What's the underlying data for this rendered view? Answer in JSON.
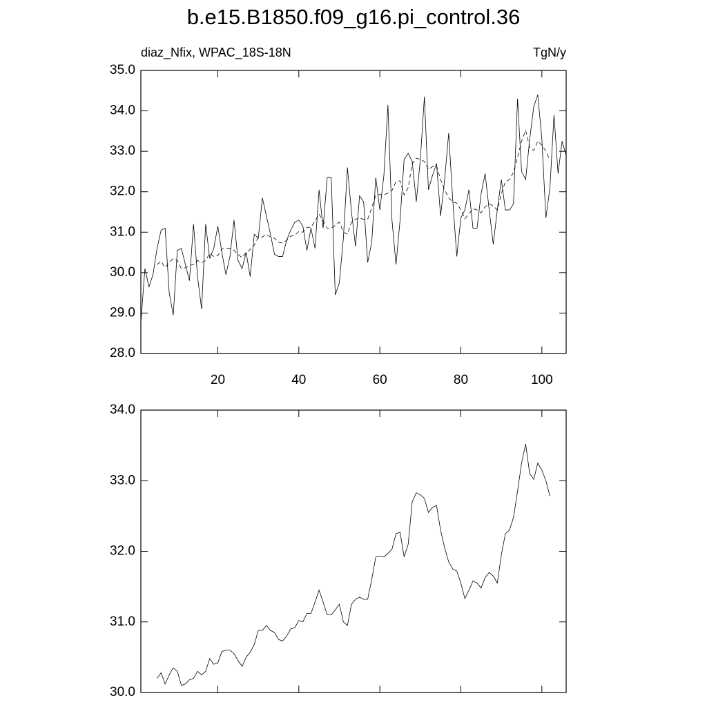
{
  "chart_data": [
    {
      "type": "line",
      "title": "b.e15.B1850.f09_g16.pi_control.36",
      "subtitle_left": "diaz_Nfix, WPAC_18S-18N",
      "subtitle_right": "TgN/y",
      "x": [
        1,
        2,
        3,
        4,
        5,
        6,
        7,
        8,
        9,
        10,
        11,
        12,
        13,
        14,
        15,
        16,
        17,
        18,
        19,
        20,
        21,
        22,
        23,
        24,
        25,
        26,
        27,
        28,
        29,
        30,
        31,
        32,
        33,
        34,
        35,
        36,
        37,
        38,
        39,
        40,
        41,
        42,
        43,
        44,
        45,
        46,
        47,
        48,
        49,
        50,
        51,
        52,
        53,
        54,
        55,
        56,
        57,
        58,
        59,
        60,
        61,
        62,
        63,
        64,
        65,
        66,
        67,
        68,
        69,
        70,
        71,
        72,
        73,
        74,
        75,
        76,
        77,
        78,
        79,
        80,
        81,
        82,
        83,
        84,
        85,
        86,
        87,
        88,
        89,
        90,
        91,
        92,
        93,
        94,
        95,
        96,
        97,
        98,
        99,
        100,
        101,
        102,
        103,
        104,
        105,
        106
      ],
      "series": [
        {
          "color": "#000000",
          "dash": false,
          "values": [
            28.75,
            30.1,
            29.65,
            29.95,
            30.6,
            31.05,
            31.1,
            29.5,
            28.95,
            30.55,
            30.6,
            30.2,
            29.8,
            31.2,
            29.9,
            29.1,
            31.2,
            30.35,
            30.6,
            31.15,
            30.5,
            29.95,
            30.4,
            31.3,
            30.3,
            30.1,
            30.5,
            29.9,
            30.95,
            30.85,
            31.85,
            31.4,
            30.95,
            30.45,
            30.4,
            30.4,
            30.8,
            31.05,
            31.25,
            31.3,
            31.15,
            30.55,
            31.1,
            30.6,
            32.05,
            31.1,
            32.35,
            32.35,
            29.45,
            29.75,
            30.85,
            32.6,
            31.5,
            30.65,
            31.9,
            31.75,
            30.25,
            30.75,
            32.35,
            31.55,
            32.4,
            34.15,
            31.3,
            30.2,
            31.3,
            32.8,
            32.95,
            32.75,
            31.75,
            32.8,
            34.35,
            32.05,
            32.4,
            32.7,
            31.4,
            32.3,
            33.45,
            31.8,
            30.4,
            31.35,
            31.55,
            32.05,
            31.1,
            31.1,
            31.95,
            32.45,
            31.55,
            30.7,
            31.55,
            32.3,
            31.55,
            31.55,
            31.7,
            34.3,
            32.5,
            32.3,
            33.3,
            34.1,
            34.4,
            33.3,
            31.35,
            32.1,
            33.9,
            32.45,
            33.25,
            32.9
          ]
        },
        {
          "color": "#000000",
          "dash": true,
          "values": [
            null,
            null,
            null,
            null,
            30.2,
            30.28,
            30.12,
            30.25,
            30.35,
            30.3,
            30.1,
            30.12,
            30.18,
            30.2,
            30.3,
            30.25,
            30.3,
            30.48,
            30.4,
            30.42,
            30.58,
            30.6,
            30.6,
            30.55,
            30.45,
            30.37,
            30.5,
            30.57,
            30.68,
            30.88,
            30.88,
            30.95,
            30.88,
            30.85,
            30.75,
            30.73,
            30.8,
            30.9,
            30.92,
            31.02,
            31.0,
            31.12,
            31.12,
            31.28,
            31.45,
            31.28,
            31.1,
            31.1,
            31.17,
            31.25,
            31.0,
            30.95,
            31.25,
            31.32,
            31.35,
            31.32,
            31.32,
            31.6,
            31.92,
            31.93,
            31.92,
            31.97,
            32.03,
            32.25,
            32.27,
            31.92,
            32.1,
            32.7,
            32.83,
            32.8,
            32.75,
            32.55,
            32.62,
            32.65,
            32.3,
            32.05,
            31.85,
            31.75,
            31.72,
            31.55,
            31.33,
            31.45,
            31.58,
            31.55,
            31.48,
            31.63,
            31.7,
            31.65,
            31.55,
            31.95,
            32.25,
            32.3,
            32.48,
            32.85,
            33.25,
            33.52,
            33.1,
            33.02,
            33.25,
            33.15,
            33.0,
            32.78,
            null,
            null,
            null,
            null
          ]
        }
      ],
      "xlim": [
        1,
        106
      ],
      "xticks": [
        20,
        40,
        60,
        80,
        100
      ],
      "ylim": [
        28,
        35
      ],
      "yticks": [
        {
          "value": 28,
          "label": "28.0"
        },
        {
          "value": 29,
          "label": "29.0"
        },
        {
          "value": 30,
          "label": "30.0"
        },
        {
          "value": 31,
          "label": "31.0"
        },
        {
          "value": 32,
          "label": "32.0"
        },
        {
          "value": 33,
          "label": "33.0"
        },
        {
          "value": 34,
          "label": "34.0"
        },
        {
          "value": 35,
          "label": "35.0"
        }
      ]
    },
    {
      "type": "line",
      "x": [
        5,
        6,
        7,
        8,
        9,
        10,
        11,
        12,
        13,
        14,
        15,
        16,
        17,
        18,
        19,
        20,
        21,
        22,
        23,
        24,
        25,
        26,
        27,
        28,
        29,
        30,
        31,
        32,
        33,
        34,
        35,
        36,
        37,
        38,
        39,
        40,
        41,
        42,
        43,
        44,
        45,
        46,
        47,
        48,
        49,
        50,
        51,
        52,
        53,
        54,
        55,
        56,
        57,
        58,
        59,
        60,
        61,
        62,
        63,
        64,
        65,
        66,
        67,
        68,
        69,
        70,
        71,
        72,
        73,
        74,
        75,
        76,
        77,
        78,
        79,
        80,
        81,
        82,
        83,
        84,
        85,
        86,
        87,
        88,
        89,
        90,
        91,
        92,
        93,
        94,
        95,
        96,
        97,
        98,
        99,
        100,
        101,
        102
      ],
      "series": [
        {
          "color": "#000000",
          "dash": false,
          "values": [
            30.2,
            30.28,
            30.12,
            30.25,
            30.35,
            30.3,
            30.1,
            30.12,
            30.18,
            30.2,
            30.3,
            30.25,
            30.3,
            30.48,
            30.4,
            30.42,
            30.58,
            30.6,
            30.6,
            30.55,
            30.45,
            30.37,
            30.5,
            30.57,
            30.68,
            30.88,
            30.88,
            30.95,
            30.88,
            30.85,
            30.75,
            30.73,
            30.8,
            30.9,
            30.92,
            31.02,
            31.0,
            31.12,
            31.12,
            31.28,
            31.45,
            31.28,
            31.1,
            31.1,
            31.17,
            31.25,
            31.0,
            30.95,
            31.25,
            31.32,
            31.35,
            31.32,
            31.32,
            31.6,
            31.92,
            31.93,
            31.92,
            31.97,
            32.03,
            32.25,
            32.27,
            31.92,
            32.1,
            32.7,
            32.83,
            32.8,
            32.75,
            32.55,
            32.62,
            32.65,
            32.3,
            32.05,
            31.85,
            31.75,
            31.72,
            31.55,
            31.33,
            31.45,
            31.58,
            31.55,
            31.48,
            31.63,
            31.7,
            31.65,
            31.55,
            31.95,
            32.25,
            32.3,
            32.48,
            32.85,
            33.25,
            33.52,
            33.1,
            33.02,
            33.25,
            33.15,
            33.0,
            32.78
          ]
        }
      ],
      "xlim": [
        1,
        106
      ],
      "xticks": [
        20,
        40,
        60,
        80,
        100
      ],
      "ylim": [
        30,
        34
      ],
      "yticks": [
        {
          "value": 30,
          "label": "30.0"
        },
        {
          "value": 31,
          "label": "31.0"
        },
        {
          "value": 32,
          "label": "32.0"
        },
        {
          "value": 33,
          "label": "33.0"
        },
        {
          "value": 34,
          "label": "34.0"
        }
      ]
    }
  ]
}
